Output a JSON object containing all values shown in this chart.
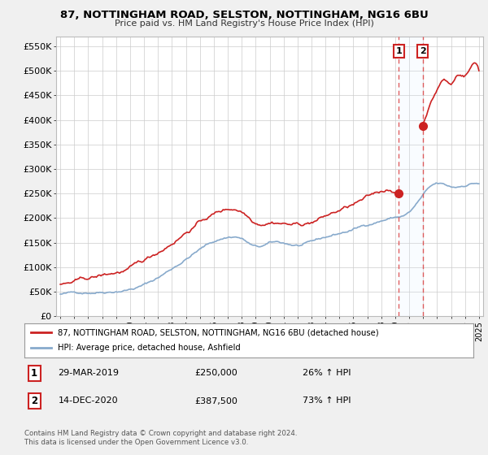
{
  "title": "87, NOTTINGHAM ROAD, SELSTON, NOTTINGHAM, NG16 6BU",
  "subtitle": "Price paid vs. HM Land Registry's House Price Index (HPI)",
  "legend_line1": "87, NOTTINGHAM ROAD, SELSTON, NOTTINGHAM, NG16 6BU (detached house)",
  "legend_line2": "HPI: Average price, detached house, Ashfield",
  "transaction1": {
    "label": "1",
    "date": "29-MAR-2019",
    "price": "£250,000",
    "hpi": "26% ↑ HPI",
    "year": 2019.25
  },
  "transaction2": {
    "label": "2",
    "date": "14-DEC-2020",
    "price": "£387,500",
    "hpi": "73% ↑ HPI",
    "year": 2020.96
  },
  "footer": "Contains HM Land Registry data © Crown copyright and database right 2024.\nThis data is licensed under the Open Government Licence v3.0.",
  "ylim": [
    0,
    570000
  ],
  "yticks": [
    0,
    50000,
    100000,
    150000,
    200000,
    250000,
    300000,
    350000,
    400000,
    450000,
    500000,
    550000
  ],
  "xlim": [
    1994.7,
    2025.3
  ],
  "property_color": "#cc2222",
  "hpi_color": "#88aacc",
  "background_color": "#f0f0f0",
  "plot_bg_color": "#ffffff",
  "grid_color": "#cccccc",
  "vline_color": "#dd4444",
  "shade_color": "#ddeeff"
}
